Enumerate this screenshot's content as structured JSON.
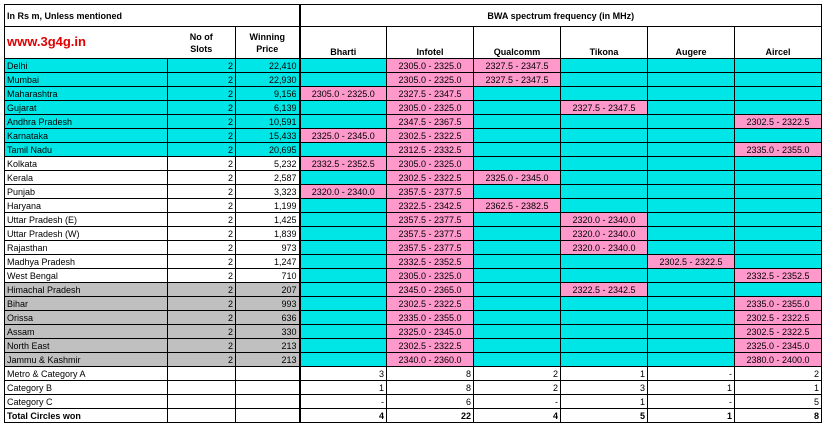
{
  "header": {
    "subtitle": "In Rs m, Unless mentioned",
    "website": "www.3g4g.in",
    "slots_label_1": "No of",
    "slots_label_2": "Slots",
    "price_label_1": "Winning",
    "price_label_2": "Price",
    "bwa_title": "BWA spectrum frequency (in MHz)",
    "operators": [
      "Bharti",
      "Infotel",
      "Qualcomm",
      "Tikona",
      "Augere",
      "Aircel"
    ]
  },
  "rows": [
    {
      "circle": "Delhi",
      "slots": "2",
      "price": "22,410",
      "bg": "c",
      "f": [
        "",
        "2305.0 - 2325.0",
        "2327.5 - 2347.5",
        "",
        "",
        ""
      ]
    },
    {
      "circle": "Mumbai",
      "slots": "2",
      "price": "22,930",
      "bg": "c",
      "f": [
        "",
        "2305.0 - 2325.0",
        "2327.5 - 2347.5",
        "",
        "",
        ""
      ]
    },
    {
      "circle": "Maharashtra",
      "slots": "2",
      "price": "9,156",
      "bg": "c",
      "f": [
        "2305.0 - 2325.0",
        "2327.5 - 2347.5",
        "",
        "",
        "",
        ""
      ]
    },
    {
      "circle": "Gujarat",
      "slots": "2",
      "price": "6,139",
      "bg": "c",
      "f": [
        "",
        "2305.0 - 2325.0",
        "",
        "2327.5 - 2347.5",
        "",
        ""
      ]
    },
    {
      "circle": "Andhra Pradesh",
      "slots": "2",
      "price": "10,591",
      "bg": "c",
      "f": [
        "",
        "2347.5 - 2367.5",
        "",
        "",
        "",
        "2302.5 - 2322.5"
      ]
    },
    {
      "circle": "Karnataka",
      "slots": "2",
      "price": "15,433",
      "bg": "c",
      "f": [
        "2325.0 - 2345.0",
        "2302.5 - 2322.5",
        "",
        "",
        "",
        ""
      ]
    },
    {
      "circle": "Tamil Nadu",
      "slots": "2",
      "price": "20,695",
      "bg": "c",
      "f": [
        "",
        "2312.5 - 2332.5",
        "",
        "",
        "",
        "2335.0 - 2355.0"
      ]
    },
    {
      "circle": "Kolkata",
      "slots": "2",
      "price": "5,232",
      "bg": "w",
      "f": [
        "2332.5 - 2352.5",
        "2305.0 - 2325.0",
        "",
        "",
        "",
        ""
      ]
    },
    {
      "circle": "Kerala",
      "slots": "2",
      "price": "2,587",
      "bg": "w",
      "f": [
        "",
        "2302.5 - 2322.5",
        "2325.0 - 2345.0",
        "",
        "",
        ""
      ]
    },
    {
      "circle": "Punjab",
      "slots": "2",
      "price": "3,323",
      "bg": "w",
      "f": [
        "2320.0 - 2340.0",
        "2357.5 - 2377.5",
        "",
        "",
        "",
        ""
      ]
    },
    {
      "circle": "Haryana",
      "slots": "2",
      "price": "1,199",
      "bg": "w",
      "f": [
        "",
        "2322.5 - 2342.5",
        "2362.5 - 2382.5",
        "",
        "",
        ""
      ]
    },
    {
      "circle": "Uttar Pradesh (E)",
      "slots": "2",
      "price": "1,425",
      "bg": "w",
      "f": [
        "",
        "2357.5 - 2377.5",
        "",
        "2320.0 - 2340.0",
        "",
        ""
      ]
    },
    {
      "circle": "Uttar Pradesh (W)",
      "slots": "2",
      "price": "1,839",
      "bg": "w",
      "f": [
        "",
        "2357.5 - 2377.5",
        "",
        "2320.0 - 2340.0",
        "",
        ""
      ]
    },
    {
      "circle": "Rajasthan",
      "slots": "2",
      "price": "973",
      "bg": "w",
      "f": [
        "",
        "2357.5 - 2377.5",
        "",
        "2320.0 - 2340.0",
        "",
        ""
      ]
    },
    {
      "circle": "Madhya Pradesh",
      "slots": "2",
      "price": "1,247",
      "bg": "w",
      "f": [
        "",
        "2332.5 - 2352.5",
        "",
        "",
        "2302.5 - 2322.5",
        ""
      ]
    },
    {
      "circle": "West Bengal",
      "slots": "2",
      "price": "710",
      "bg": "w",
      "f": [
        "",
        "2305.0 - 2325.0",
        "",
        "",
        "",
        "2332.5 - 2352.5"
      ]
    },
    {
      "circle": "Himachal Pradesh",
      "slots": "2",
      "price": "207",
      "bg": "g",
      "f": [
        "",
        "2345.0 - 2365.0",
        "",
        "2322.5 - 2342.5",
        "",
        ""
      ]
    },
    {
      "circle": "Bihar",
      "slots": "2",
      "price": "993",
      "bg": "g",
      "f": [
        "",
        "2302.5 - 2322.5",
        "",
        "",
        "",
        "2335.0 - 2355.0"
      ]
    },
    {
      "circle": "Orissa",
      "slots": "2",
      "price": "636",
      "bg": "g",
      "f": [
        "",
        "2335.0 - 2355.0",
        "",
        "",
        "",
        "2302.5 - 2322.5"
      ]
    },
    {
      "circle": "Assam",
      "slots": "2",
      "price": "330",
      "bg": "g",
      "f": [
        "",
        "2325.0 - 2345.0",
        "",
        "",
        "",
        "2302.5 - 2322.5"
      ]
    },
    {
      "circle": "North East",
      "slots": "2",
      "price": "213",
      "bg": "g",
      "f": [
        "",
        "2302.5 - 2322.5",
        "",
        "",
        "",
        "2325.0 - 2345.0"
      ]
    },
    {
      "circle": "Jammu & Kashmir",
      "slots": "2",
      "price": "213",
      "bg": "g",
      "f": [
        "",
        "2340.0 - 2360.0",
        "",
        "",
        "",
        "2380.0 - 2400.0"
      ]
    }
  ],
  "summary": [
    {
      "label": "Metro & Category A",
      "vals": [
        "3",
        "8",
        "2",
        "1",
        "-",
        "2"
      ],
      "bold": false
    },
    {
      "label": "Category B",
      "vals": [
        "1",
        "8",
        "2",
        "3",
        "1",
        "1"
      ],
      "bold": false
    },
    {
      "label": "Category C",
      "vals": [
        "-",
        "6",
        "-",
        "1",
        "-",
        "5"
      ],
      "bold": false
    },
    {
      "label": "Total Circles won",
      "vals": [
        "4",
        "22",
        "4",
        "5",
        "1",
        "8"
      ],
      "bold": true
    }
  ],
  "colors": {
    "cyan": "#00e6e6",
    "pink": "#ff99cc",
    "gray": "#c0c0c0",
    "site_red": "#e00000"
  }
}
